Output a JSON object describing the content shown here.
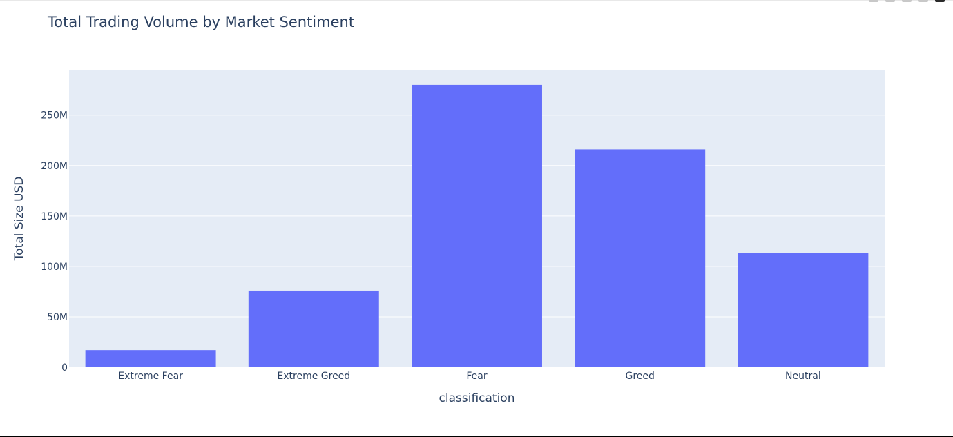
{
  "colors": {
    "bar": "#636efa",
    "plot_bg": "#e5ecf6",
    "grid": "#ffffff",
    "text": "#2a3f5f"
  },
  "modebar": {
    "icons": [
      "zoom-icon",
      "pan-icon",
      "autoscale-icon",
      "reset-icon",
      "logo-icon"
    ]
  },
  "chart_data": {
    "type": "bar",
    "title": "Total Trading Volume by Market Sentiment",
    "xlabel": "classification",
    "ylabel": "Total Size USD",
    "categories": [
      "Extreme Fear",
      "Extreme Greed",
      "Fear",
      "Greed",
      "Neutral"
    ],
    "values": [
      17000000,
      76000000,
      280000000,
      216000000,
      113000000
    ],
    "ylim": [
      0,
      295000000
    ],
    "yticks": [
      0,
      50000000,
      100000000,
      150000000,
      200000000,
      250000000
    ],
    "ytick_labels": [
      "0",
      "50M",
      "100M",
      "150M",
      "200M",
      "250M"
    ],
    "grid": true,
    "legend": "none"
  }
}
